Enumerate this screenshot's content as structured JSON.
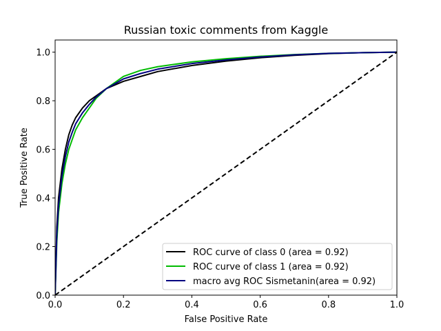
{
  "chart_data": {
    "type": "line",
    "title": "Russian toxic comments from Kaggle",
    "xlabel": "False Positive Rate",
    "ylabel": "True Positive Rate",
    "xlim": [
      0,
      1
    ],
    "ylim": [
      0,
      1.05
    ],
    "xticks": [
      "0.0",
      "0.2",
      "0.4",
      "0.6",
      "0.8",
      "1.0"
    ],
    "yticks": [
      "0.0",
      "0.2",
      "0.4",
      "0.6",
      "0.8",
      "1.0"
    ],
    "legend_position": "lower-right",
    "series": [
      {
        "name": "ROC curve of class 0 (area = 0.92)",
        "color": "#000000",
        "x": [
          0,
          0.005,
          0.01,
          0.02,
          0.03,
          0.04,
          0.05,
          0.06,
          0.08,
          0.1,
          0.12,
          0.15,
          0.2,
          0.25,
          0.3,
          0.4,
          0.5,
          0.6,
          0.7,
          0.8,
          0.9,
          1.0
        ],
        "y": [
          0,
          0.28,
          0.4,
          0.52,
          0.6,
          0.66,
          0.7,
          0.73,
          0.77,
          0.8,
          0.82,
          0.85,
          0.88,
          0.9,
          0.92,
          0.945,
          0.963,
          0.977,
          0.987,
          0.994,
          0.998,
          1.0
        ]
      },
      {
        "name": "ROC curve of class 1 (area = 0.92)",
        "color": "#00bb00",
        "x": [
          0,
          0.005,
          0.01,
          0.02,
          0.03,
          0.04,
          0.05,
          0.06,
          0.08,
          0.1,
          0.12,
          0.15,
          0.2,
          0.25,
          0.3,
          0.4,
          0.5,
          0.6,
          0.7,
          0.8,
          0.9,
          1.0
        ],
        "y": [
          0,
          0.22,
          0.34,
          0.46,
          0.54,
          0.6,
          0.64,
          0.68,
          0.73,
          0.77,
          0.81,
          0.85,
          0.9,
          0.925,
          0.94,
          0.96,
          0.973,
          0.983,
          0.99,
          0.995,
          0.998,
          1.0
        ]
      },
      {
        "name": "macro avg ROC Sismetanin(area = 0.92)",
        "color": "#000080",
        "x": [
          0,
          0.005,
          0.01,
          0.02,
          0.03,
          0.04,
          0.05,
          0.06,
          0.08,
          0.1,
          0.12,
          0.15,
          0.2,
          0.25,
          0.3,
          0.4,
          0.5,
          0.6,
          0.7,
          0.8,
          0.9,
          1.0
        ],
        "y": [
          0,
          0.25,
          0.37,
          0.49,
          0.57,
          0.63,
          0.67,
          0.705,
          0.75,
          0.785,
          0.815,
          0.85,
          0.89,
          0.912,
          0.93,
          0.953,
          0.968,
          0.98,
          0.989,
          0.995,
          0.998,
          1.0
        ]
      },
      {
        "name": "",
        "color": "#000000",
        "dashed": true,
        "x": [
          0,
          1
        ],
        "y": [
          0,
          1
        ]
      }
    ]
  }
}
